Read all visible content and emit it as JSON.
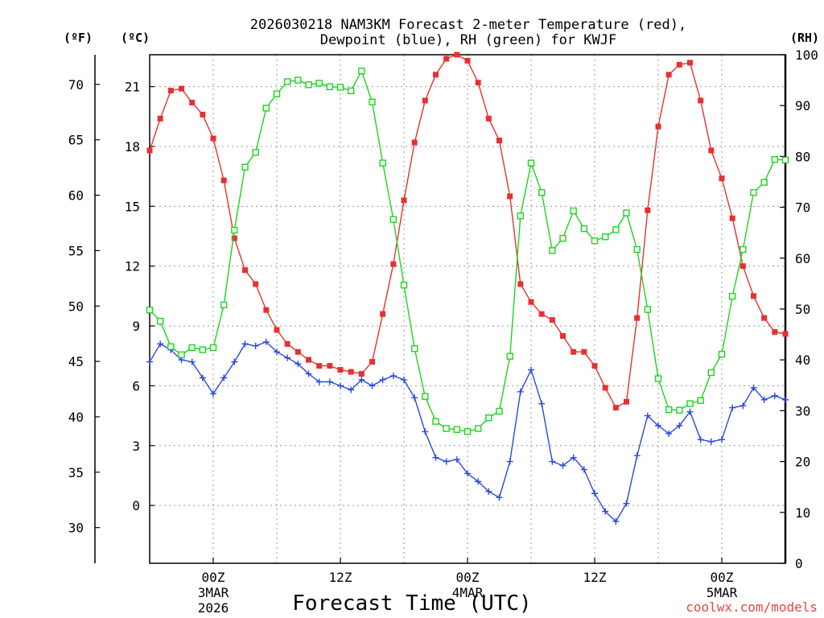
{
  "chart_data": {
    "type": "line",
    "title_line1": "2026030218 NAM3KM Forecast 2-meter Temperature (red),",
    "title_line2": "Dewpoint (blue), RH (green) for KWJF",
    "xlabel": "Forecast Time (UTC)",
    "credit": "coolwx.com/models",
    "units": {
      "fahrenheit": "(ºF)",
      "celsius": "(ºC)",
      "rh": "(RH)"
    },
    "x_unit": "forecast hours from 2026030218",
    "xlim": [
      0,
      60
    ],
    "ylim_celsius": [
      -2.9,
      22.6
    ],
    "ylim_rh": [
      0,
      100
    ],
    "x_ticks": [
      {
        "hour": 6,
        "label": "00Z",
        "sub1": "3MAR",
        "sub2": "2026"
      },
      {
        "hour": 18,
        "label": "12Z",
        "sub1": "",
        "sub2": ""
      },
      {
        "hour": 30,
        "label": "00Z",
        "sub1": "4MAR",
        "sub2": ""
      },
      {
        "hour": 42,
        "label": "12Z",
        "sub1": "",
        "sub2": ""
      },
      {
        "hour": 54,
        "label": "00Z",
        "sub1": "5MAR",
        "sub2": ""
      }
    ],
    "y_ticks_celsius": [
      "0",
      "3",
      "6",
      "9",
      "12",
      "15",
      "18",
      "21"
    ],
    "y_ticks_fahrenheit": [
      "30",
      "35",
      "40",
      "45",
      "50",
      "55",
      "60",
      "65",
      "70"
    ],
    "y_ticks_rh": [
      "0",
      "10",
      "20",
      "30",
      "40",
      "50",
      "60",
      "70",
      "80",
      "90",
      "100"
    ],
    "series": [
      {
        "name": "2-meter Temperature",
        "unit": "ºC",
        "color": "#e83030",
        "marker": "filled-square",
        "x": [
          0,
          1,
          2,
          3,
          4,
          5,
          6,
          7,
          8,
          9,
          10,
          11,
          12,
          13,
          14,
          15,
          16,
          17,
          18,
          19,
          20,
          21,
          22,
          23,
          24,
          25,
          26,
          27,
          28,
          29,
          30,
          31,
          32,
          33,
          34,
          35,
          36,
          37,
          38,
          39,
          40,
          41,
          42,
          43,
          44,
          45,
          46,
          47,
          48,
          49,
          50,
          51,
          52,
          53,
          54,
          55,
          56,
          57,
          58,
          59,
          60
        ],
        "values": [
          17.8,
          19.4,
          20.8,
          20.9,
          20.2,
          19.6,
          18.4,
          16.3,
          13.4,
          11.8,
          11.1,
          9.8,
          8.8,
          8.1,
          7.7,
          7.3,
          7.0,
          7.0,
          6.8,
          6.7,
          6.6,
          7.2,
          9.6,
          12.1,
          15.3,
          18.2,
          20.3,
          21.6,
          22.4,
          22.6,
          22.3,
          21.2,
          19.4,
          18.3,
          15.5,
          11.1,
          10.2,
          9.6,
          9.3,
          8.5,
          7.7,
          7.7,
          7.0,
          5.9,
          4.9,
          5.2,
          9.4,
          14.8,
          19.0,
          21.6,
          22.1,
          22.2,
          20.3,
          17.8,
          16.4,
          14.4,
          12.0,
          10.5,
          9.4,
          8.7,
          8.6
        ]
      },
      {
        "name": "Dewpoint",
        "unit": "ºC",
        "color": "#2a48e0",
        "marker": "plus",
        "x": [
          0,
          1,
          2,
          3,
          4,
          5,
          6,
          7,
          8,
          9,
          10,
          11,
          12,
          13,
          14,
          15,
          16,
          17,
          18,
          19,
          20,
          21,
          22,
          23,
          24,
          25,
          26,
          27,
          28,
          29,
          30,
          31,
          32,
          33,
          34,
          35,
          36,
          37,
          38,
          39,
          40,
          41,
          42,
          43,
          44,
          45,
          46,
          47,
          48,
          49,
          50,
          51,
          52,
          53,
          54,
          55,
          56,
          57,
          58,
          59,
          60
        ],
        "values": [
          7.2,
          8.1,
          7.8,
          7.3,
          7.2,
          6.4,
          5.6,
          6.4,
          7.2,
          8.1,
          8.0,
          8.2,
          7.7,
          7.4,
          7.1,
          6.6,
          6.2,
          6.2,
          6.0,
          5.8,
          6.3,
          6.0,
          6.3,
          6.5,
          6.3,
          5.4,
          3.7,
          2.4,
          2.2,
          2.3,
          1.6,
          1.2,
          0.7,
          0.4,
          2.2,
          5.7,
          6.8,
          5.1,
          2.2,
          2.0,
          2.4,
          1.8,
          0.6,
          -0.3,
          -0.8,
          0.1,
          2.5,
          4.5,
          4.0,
          3.6,
          4.0,
          4.7,
          3.3,
          3.2,
          3.3,
          4.9,
          5.0,
          5.9,
          5.3,
          5.5,
          5.3
        ]
      },
      {
        "name": "Relative Humidity",
        "unit": "%",
        "color": "#1ed41e",
        "marker": "open-square",
        "x": [
          0,
          1,
          2,
          3,
          4,
          5,
          6,
          7,
          8,
          9,
          10,
          11,
          12,
          13,
          14,
          15,
          16,
          17,
          18,
          19,
          20,
          21,
          22,
          23,
          24,
          25,
          26,
          27,
          28,
          29,
          30,
          31,
          32,
          33,
          34,
          35,
          36,
          37,
          38,
          39,
          40,
          41,
          42,
          43,
          44,
          45,
          46,
          47,
          48,
          49,
          50,
          51,
          52,
          53,
          54,
          55,
          56,
          57,
          58,
          59,
          60
        ],
        "values": [
          49.8,
          47.6,
          42.6,
          41.0,
          42.4,
          42.0,
          42.4,
          50.8,
          65.5,
          77.9,
          80.8,
          89.5,
          92.3,
          94.7,
          95.0,
          94.1,
          94.4,
          93.7,
          93.6,
          92.9,
          96.8,
          90.7,
          78.7,
          67.6,
          54.7,
          42.2,
          32.8,
          27.9,
          26.5,
          26.3,
          25.9,
          26.5,
          28.6,
          29.9,
          40.7,
          68.3,
          78.7,
          72.9,
          61.5,
          63.9,
          69.3,
          65.8,
          63.4,
          64.2,
          65.6,
          68.9,
          61.7,
          49.9,
          36.3,
          30.2,
          30.1,
          31.4,
          32.0,
          37.5,
          41.1,
          52.5,
          61.7,
          72.9,
          74.9,
          79.4,
          79.3
        ]
      }
    ]
  }
}
